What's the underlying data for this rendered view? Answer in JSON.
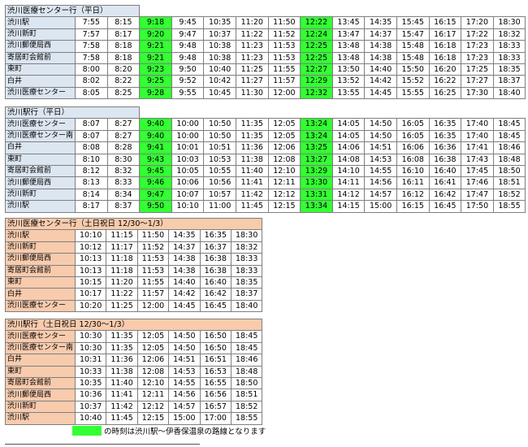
{
  "tables": [
    {
      "id": "weekday-to-center",
      "title": "渋川医療センター行（平日）",
      "kind": "weekday",
      "top": 6,
      "green_index": 2,
      "rows": [
        {
          "stop": "渋川駅",
          "times": [
            "7:55",
            "8:15",
            "9:18",
            "9:45",
            "10:35",
            "11:20",
            "11:50",
            "12:22",
            "13:45",
            "14:35",
            "15:45",
            "16:15",
            "17:20",
            "18:30"
          ]
        },
        {
          "stop": "渋川新町",
          "times": [
            "7:57",
            "8:17",
            "9:20",
            "9:47",
            "10:37",
            "11:22",
            "11:52",
            "12:24",
            "13:47",
            "14:37",
            "15:47",
            "16:17",
            "17:22",
            "18:32"
          ]
        },
        {
          "stop": "渋川郵便局西",
          "times": [
            "7:58",
            "8:18",
            "9:21",
            "9:48",
            "10:38",
            "11:23",
            "11:53",
            "12:25",
            "13:48",
            "14:38",
            "15:48",
            "16:18",
            "17:23",
            "18:33"
          ]
        },
        {
          "stop": "寄居町会館前",
          "times": [
            "7:58",
            "8:18",
            "9:21",
            "9:48",
            "10:38",
            "11:23",
            "11:53",
            "12:25",
            "13:48",
            "14:38",
            "15:48",
            "16:18",
            "17:23",
            "18:33"
          ]
        },
        {
          "stop": "東町",
          "times": [
            "8:00",
            "8:20",
            "9:23",
            "9:50",
            "10:40",
            "11:25",
            "11:55",
            "12:27",
            "13:50",
            "14:40",
            "15:50",
            "16:20",
            "17:25",
            "18:35"
          ]
        },
        {
          "stop": "白井",
          "times": [
            "8:02",
            "8:22",
            "9:25",
            "9:52",
            "10:42",
            "11:27",
            "11:57",
            "12:29",
            "13:52",
            "14:42",
            "15:52",
            "16:22",
            "17:27",
            "18:37"
          ]
        },
        {
          "stop": "渋川医療センター",
          "times": [
            "8:05",
            "8:25",
            "9:28",
            "9:55",
            "10:45",
            "11:30",
            "12:00",
            "12:32",
            "13:55",
            "14:45",
            "15:55",
            "16:25",
            "17:30",
            "18:40"
          ]
        }
      ]
    },
    {
      "id": "weekday-to-station",
      "title": "渋川駅行（平日）",
      "kind": "weekday",
      "top": 131,
      "green_index": 2,
      "rows": [
        {
          "stop": "渋川医療センター",
          "times": [
            "8:07",
            "8:27",
            "9:40",
            "10:00",
            "10:50",
            "11:35",
            "12:05",
            "13:24",
            "14:05",
            "14:50",
            "16:05",
            "16:35",
            "17:40",
            "18:45"
          ]
        },
        {
          "stop": "渋川医療センター南",
          "times": [
            "8:07",
            "8:27",
            "9:40",
            "10:00",
            "10:50",
            "11:35",
            "12:05",
            "13:24",
            "14:05",
            "14:50",
            "16:05",
            "16:35",
            "17:40",
            "18:45"
          ]
        },
        {
          "stop": "白井",
          "times": [
            "8:08",
            "8:28",
            "9:41",
            "10:01",
            "10:51",
            "11:36",
            "12:06",
            "13:25",
            "14:06",
            "14:51",
            "16:06",
            "16:36",
            "17:41",
            "18:46"
          ]
        },
        {
          "stop": "東町",
          "times": [
            "8:10",
            "8:30",
            "9:43",
            "10:03",
            "10:53",
            "11:38",
            "12:08",
            "13:27",
            "14:08",
            "14:53",
            "16:08",
            "16:38",
            "17:43",
            "18:48"
          ]
        },
        {
          "stop": "寄居町会館前",
          "times": [
            "8:12",
            "8:32",
            "9:45",
            "10:05",
            "10:55",
            "11:40",
            "12:10",
            "13:29",
            "14:10",
            "14:55",
            "16:10",
            "16:40",
            "17:45",
            "18:50"
          ]
        },
        {
          "stop": "渋川郵便局西",
          "times": [
            "8:13",
            "8:33",
            "9:46",
            "10:06",
            "10:56",
            "11:41",
            "12:11",
            "13:30",
            "14:11",
            "14:56",
            "16:11",
            "16:41",
            "17:46",
            "18:51"
          ]
        },
        {
          "stop": "渋川新町",
          "times": [
            "8:14",
            "8:34",
            "9:47",
            "10:07",
            "10:57",
            "11:42",
            "12:12",
            "13:31",
            "14:12",
            "14:57",
            "16:12",
            "16:42",
            "17:47",
            "18:52"
          ]
        },
        {
          "stop": "渋川駅",
          "times": [
            "8:17",
            "8:37",
            "9:50",
            "10:10",
            "11:00",
            "11:45",
            "12:15",
            "13:34",
            "14:15",
            "15:00",
            "16:15",
            "16:45",
            "17:50",
            "18:55"
          ]
        }
      ]
    },
    {
      "id": "weekend-to-center",
      "title": "渋川医療センター行（土日祝日 12/30～1/3）",
      "kind": "weekend",
      "top": 268,
      "rows": [
        {
          "stop": "渋川駅",
          "times": [
            "10:10",
            "11:15",
            "11:50",
            "14:35",
            "16:35",
            "18:30"
          ]
        },
        {
          "stop": "渋川新町",
          "times": [
            "10:12",
            "11:17",
            "11:52",
            "14:37",
            "16:37",
            "18:32"
          ]
        },
        {
          "stop": "渋川郵便局西",
          "times": [
            "10:13",
            "11:18",
            "11:53",
            "14:38",
            "16:38",
            "18:33"
          ]
        },
        {
          "stop": "寄居町会館前",
          "times": [
            "10:13",
            "11:18",
            "11:53",
            "14:38",
            "16:38",
            "18:33"
          ]
        },
        {
          "stop": "東町",
          "times": [
            "10:15",
            "11:20",
            "11:55",
            "14:40",
            "16:40",
            "18:35"
          ]
        },
        {
          "stop": "白井",
          "times": [
            "10:17",
            "11:22",
            "11:57",
            "14:42",
            "16:42",
            "18:37"
          ]
        },
        {
          "stop": "渋川医療センター",
          "times": [
            "10:20",
            "11:25",
            "12:00",
            "14:45",
            "16:45",
            "18:40"
          ]
        }
      ]
    },
    {
      "id": "weekend-to-station",
      "title": "渋川駅行（土日祝日 12/30～1/3）",
      "kind": "weekend",
      "top": 392,
      "rows": [
        {
          "stop": "渋川医療センター",
          "times": [
            "10:30",
            "11:35",
            "12:05",
            "14:50",
            "16:50",
            "18:45"
          ]
        },
        {
          "stop": "渋川医療センター南",
          "times": [
            "10:30",
            "11:35",
            "12:05",
            "14:50",
            "16:50",
            "18:45"
          ]
        },
        {
          "stop": "白井",
          "times": [
            "10:31",
            "11:36",
            "12:06",
            "14:51",
            "16:51",
            "18:46"
          ]
        },
        {
          "stop": "東町",
          "times": [
            "10:33",
            "11:38",
            "12:08",
            "14:53",
            "16:53",
            "18:48"
          ]
        },
        {
          "stop": "寄居町会館前",
          "times": [
            "10:35",
            "11:40",
            "12:10",
            "14:55",
            "16:55",
            "18:50"
          ]
        },
        {
          "stop": "渋川郵便局西",
          "times": [
            "10:36",
            "11:41",
            "12:11",
            "14:56",
            "16:56",
            "18:51"
          ]
        },
        {
          "stop": "渋川新町",
          "times": [
            "10:37",
            "11:42",
            "12:12",
            "14:57",
            "16:57",
            "18:52"
          ]
        },
        {
          "stop": "渋川駅",
          "times": [
            "10:40",
            "11:45",
            "12:15",
            "15:00",
            "17:00",
            "18:55"
          ]
        }
      ]
    }
  ],
  "legend": {
    "color": "#33ff33",
    "text": "の時刻は渋川駅～伊香保温泉の路線となります"
  },
  "colors": {
    "weekday_header": "#dce6f1",
    "weekend_header": "#f8cbad",
    "highlight": "#33ff33"
  }
}
